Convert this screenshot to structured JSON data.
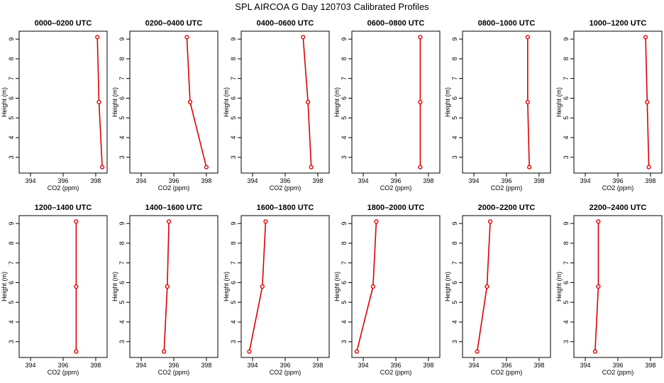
{
  "title": "SPL AIRCOA G  Day 120703  Calibrated Profiles",
  "colors": {
    "series": "#dd0000",
    "axis": "#000000"
  },
  "chart_data": [
    {
      "type": "line",
      "title": "0000–0200 UTC",
      "xlabel": "CO2 (ppm)",
      "ylabel": "Height (m)",
      "xlim": [
        393.3,
        398.7
      ],
      "ylim": [
        2.2,
        9.4
      ],
      "x_ticks": [
        394,
        396,
        398
      ],
      "y_ticks": [
        3,
        4,
        5,
        6,
        7,
        8,
        9
      ],
      "x": [
        398.4,
        398.2,
        398.1
      ],
      "y": [
        2.5,
        5.8,
        9.1
      ]
    },
    {
      "type": "line",
      "title": "0200–0400 UTC",
      "xlabel": "CO2 (ppm)",
      "ylabel": "Height (m)",
      "xlim": [
        393.3,
        398.7
      ],
      "ylim": [
        2.2,
        9.4
      ],
      "x_ticks": [
        394,
        396,
        398
      ],
      "y_ticks": [
        3,
        4,
        5,
        6,
        7,
        8,
        9
      ],
      "x": [
        398.0,
        397.0,
        396.8
      ],
      "y": [
        2.5,
        5.8,
        9.1
      ]
    },
    {
      "type": "line",
      "title": "0400–0600 UTC",
      "xlabel": "CO2 (ppm)",
      "ylabel": "Height (m)",
      "xlim": [
        393.3,
        398.7
      ],
      "ylim": [
        2.2,
        9.4
      ],
      "x_ticks": [
        394,
        396,
        398
      ],
      "y_ticks": [
        3,
        4,
        5,
        6,
        7,
        8,
        9
      ],
      "x": [
        397.6,
        397.4,
        397.1
      ],
      "y": [
        2.5,
        5.8,
        9.1
      ]
    },
    {
      "type": "line",
      "title": "0600–0800 UTC",
      "xlabel": "CO2 (ppm)",
      "ylabel": "Height (m)",
      "xlim": [
        393.3,
        398.7
      ],
      "ylim": [
        2.2,
        9.4
      ],
      "x_ticks": [
        394,
        396,
        398
      ],
      "y_ticks": [
        3,
        4,
        5,
        6,
        7,
        8,
        9
      ],
      "x": [
        397.5,
        397.5,
        397.5
      ],
      "y": [
        2.5,
        5.8,
        9.1
      ]
    },
    {
      "type": "line",
      "title": "0800–1000 UTC",
      "xlabel": "CO2 (ppm)",
      "ylabel": "Height (m)",
      "xlim": [
        393.3,
        398.7
      ],
      "ylim": [
        2.2,
        9.4
      ],
      "x_ticks": [
        394,
        396,
        398
      ],
      "y_ticks": [
        3,
        4,
        5,
        6,
        7,
        8,
        9
      ],
      "x": [
        397.4,
        397.3,
        397.3
      ],
      "y": [
        2.5,
        5.8,
        9.1
      ]
    },
    {
      "type": "line",
      "title": "1000–1200 UTC",
      "xlabel": "CO2 (ppm)",
      "ylabel": "Height (m)",
      "xlim": [
        393.3,
        398.7
      ],
      "ylim": [
        2.2,
        9.4
      ],
      "x_ticks": [
        394,
        396,
        398
      ],
      "y_ticks": [
        3,
        4,
        5,
        6,
        7,
        8,
        9
      ],
      "x": [
        397.9,
        397.8,
        397.7
      ],
      "y": [
        2.5,
        5.8,
        9.1
      ]
    },
    {
      "type": "line",
      "title": "1200–1400 UTC",
      "xlabel": "CO2 (ppm)",
      "ylabel": "Height (m)",
      "xlim": [
        393.3,
        398.7
      ],
      "ylim": [
        2.2,
        9.4
      ],
      "x_ticks": [
        394,
        396,
        398
      ],
      "y_ticks": [
        3,
        4,
        5,
        6,
        7,
        8,
        9
      ],
      "x": [
        396.8,
        396.8,
        396.8
      ],
      "y": [
        2.5,
        5.8,
        9.1
      ]
    },
    {
      "type": "line",
      "title": "1400–1600 UTC",
      "xlabel": "CO2 (ppm)",
      "ylabel": "Height (m)",
      "xlim": [
        393.3,
        398.7
      ],
      "ylim": [
        2.2,
        9.4
      ],
      "x_ticks": [
        394,
        396,
        398
      ],
      "y_ticks": [
        3,
        4,
        5,
        6,
        7,
        8,
        9
      ],
      "x": [
        395.4,
        395.6,
        395.7
      ],
      "y": [
        2.5,
        5.8,
        9.1
      ]
    },
    {
      "type": "line",
      "title": "1600–1800 UTC",
      "xlabel": "CO2 (ppm)",
      "ylabel": "Height (m)",
      "xlim": [
        393.3,
        398.7
      ],
      "ylim": [
        2.2,
        9.4
      ],
      "x_ticks": [
        394,
        396,
        398
      ],
      "y_ticks": [
        3,
        4,
        5,
        6,
        7,
        8,
        9
      ],
      "x": [
        393.8,
        394.6,
        394.8
      ],
      "y": [
        2.5,
        5.8,
        9.1
      ]
    },
    {
      "type": "line",
      "title": "1800–2000 UTC",
      "xlabel": "CO2 (ppm)",
      "ylabel": "Height (m)",
      "xlim": [
        393.3,
        398.7
      ],
      "ylim": [
        2.2,
        9.4
      ],
      "x_ticks": [
        394,
        396,
        398
      ],
      "y_ticks": [
        3,
        4,
        5,
        6,
        7,
        8,
        9
      ],
      "x": [
        393.6,
        394.6,
        394.8
      ],
      "y": [
        2.5,
        5.8,
        9.1
      ]
    },
    {
      "type": "line",
      "title": "2000–2200 UTC",
      "xlabel": "CO2 (ppm)",
      "ylabel": "Height (m)",
      "xlim": [
        393.3,
        398.7
      ],
      "ylim": [
        2.2,
        9.4
      ],
      "x_ticks": [
        394,
        396,
        398
      ],
      "y_ticks": [
        3,
        4,
        5,
        6,
        7,
        8,
        9
      ],
      "x": [
        394.2,
        394.8,
        395.0
      ],
      "y": [
        2.5,
        5.8,
        9.1
      ]
    },
    {
      "type": "line",
      "title": "2200–2400 UTC",
      "xlabel": "CO2 (ppm)",
      "ylabel": "Height (m)",
      "xlim": [
        393.3,
        398.7
      ],
      "ylim": [
        2.2,
        9.4
      ],
      "x_ticks": [
        394,
        396,
        398
      ],
      "y_ticks": [
        3,
        4,
        5,
        6,
        7,
        8,
        9
      ],
      "x": [
        394.6,
        394.8,
        394.8
      ],
      "y": [
        2.5,
        5.8,
        9.1
      ]
    }
  ]
}
